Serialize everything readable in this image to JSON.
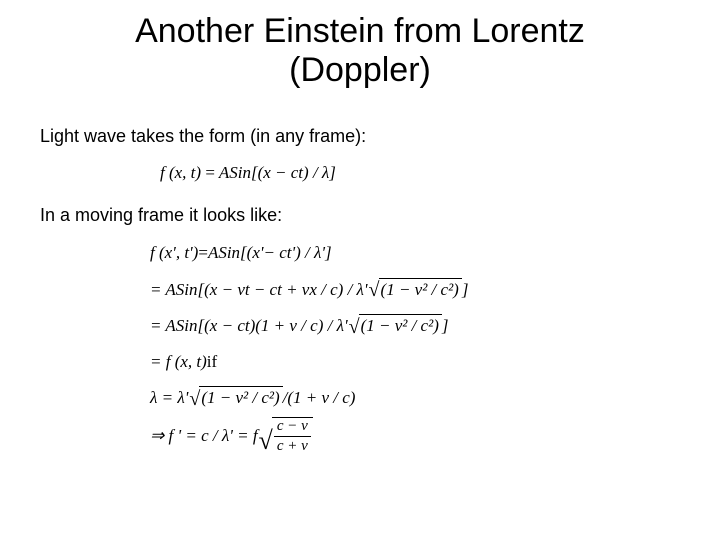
{
  "slide": {
    "title_line1": "Another Einstein from Lorentz",
    "title_line2": "(Doppler)",
    "body1": "Light wave takes the form (in any frame):",
    "body2": "In a moving frame it looks like:",
    "background_color": "#ffffff",
    "text_color": "#000000",
    "title_fontsize": 34,
    "body_fontsize": 18,
    "eq_fontsize": 17
  },
  "equations": {
    "eq1_lhs": "f (x, t) ",
    "eq1_rhs": " ASin[(x − ct) / λ]",
    "eq2_l1_lhs": "f (x', t') ",
    "eq2_l1_rhs": " ASin[(x'− ct') / λ']",
    "eq2_l2_pre": "= ASin[(x − vt − ct + vx / c) / λ' ",
    "eq2_l2_rad": "(1 − v² / c²)",
    "eq2_l2_post": "]",
    "eq2_l3_pre": "= ASin[(x − ct)(1 + v / c) / λ' ",
    "eq2_l3_rad": "(1 − v² / c²)",
    "eq2_l3_post": "]",
    "eq2_l4": "= f (x, t)  ",
    "eq2_l4_if": "if",
    "eq2_l5_pre": "λ = λ' ",
    "eq2_l5_rad": "(1 − v² / c²)",
    "eq2_l5_post": " /(1 + v / c)",
    "eq2_l6_pre": "⇒ f ' = c / λ' = f ",
    "eq2_l6_num": "c − v",
    "eq2_l6_den": "c + v"
  }
}
